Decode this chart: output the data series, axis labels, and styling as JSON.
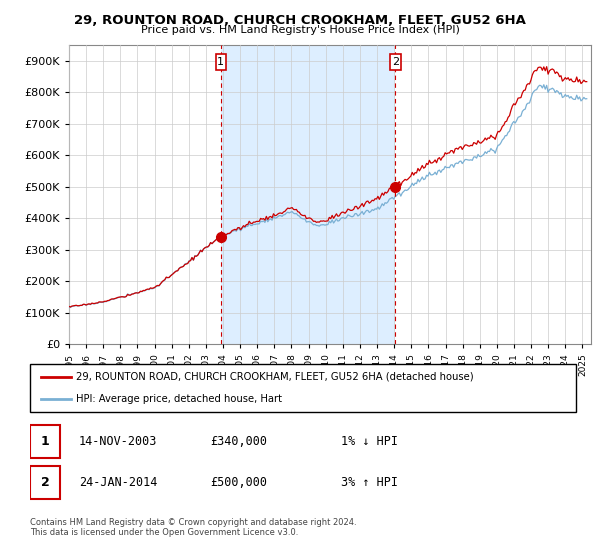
{
  "title": "29, ROUNTON ROAD, CHURCH CROOKHAM, FLEET, GU52 6HA",
  "subtitle": "Price paid vs. HM Land Registry's House Price Index (HPI)",
  "ylim": [
    0,
    950000
  ],
  "xlim_start": 1995.0,
  "xlim_end": 2025.5,
  "sale1_x": 2003.87,
  "sale1_y": 340000,
  "sale1_label": "1",
  "sale2_x": 2014.07,
  "sale2_y": 500000,
  "sale2_label": "2",
  "legend_line1": "29, ROUNTON ROAD, CHURCH CROOKHAM, FLEET, GU52 6HA (detached house)",
  "legend_line2": "HPI: Average price, detached house, Hart",
  "table_row1": [
    "1",
    "14-NOV-2003",
    "£340,000",
    "1% ↓ HPI"
  ],
  "table_row2": [
    "2",
    "24-JAN-2014",
    "£500,000",
    "3% ↑ HPI"
  ],
  "footnote": "Contains HM Land Registry data © Crown copyright and database right 2024.\nThis data is licensed under the Open Government Licence v3.0.",
  "line_color_red": "#cc0000",
  "line_color_blue": "#7ab0d4",
  "shade_color": "#ddeeff",
  "sale_marker_color": "#cc0000",
  "vline_color": "#cc0000",
  "grid_color": "#cccccc",
  "background_color": "#ffffff"
}
